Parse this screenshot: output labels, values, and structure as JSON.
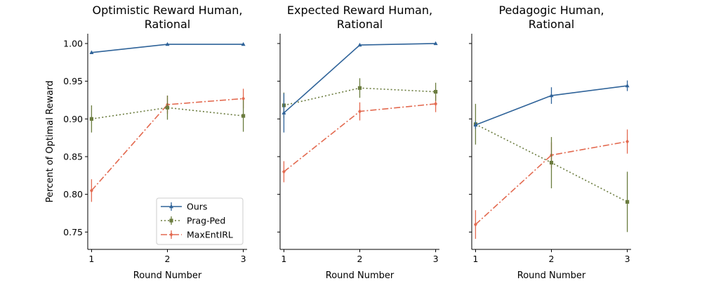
{
  "chart_data": [
    {
      "type": "line",
      "title": "Optimistic Reward Human,\nRational",
      "xlabel": "Round Number",
      "ylabel": "Percent of Optimal Reward",
      "x": [
        1,
        2,
        3
      ],
      "xlim": [
        0.95,
        3.05
      ],
      "ylim": [
        0.727,
        1.013
      ],
      "yticks": [
        "0.75",
        "0.80",
        "0.85",
        "0.90",
        "0.95",
        "1.00"
      ],
      "xticks": [
        "1",
        "2",
        "3"
      ],
      "show_yticklabels": true,
      "legend": "lower-right",
      "series": [
        {
          "name": "Ours",
          "values": [
            0.988,
            0.999,
            0.999
          ],
          "errors": [
            0.002,
            0.001,
            0.001
          ]
        },
        {
          "name": "Prag-Ped",
          "values": [
            0.9,
            0.915,
            0.904
          ],
          "errors": [
            0.018,
            0.016,
            0.021
          ]
        },
        {
          "name": "MaxEntIRL",
          "values": [
            0.805,
            0.919,
            0.927
          ],
          "errors": [
            0.015,
            0.012,
            0.013
          ]
        }
      ]
    },
    {
      "type": "line",
      "title": "Expected Reward Human,\nRational",
      "xlabel": "Round Number",
      "ylabel": "",
      "x": [
        1,
        2,
        3
      ],
      "xlim": [
        0.95,
        3.05
      ],
      "ylim": [
        0.727,
        1.013
      ],
      "xticks": [
        "1",
        "2",
        "3"
      ],
      "show_yticklabels": false,
      "legend": "",
      "series": [
        {
          "name": "Ours",
          "values": [
            0.908,
            0.998,
            1.0
          ],
          "errors": [
            0.026,
            0.001,
            0.001
          ]
        },
        {
          "name": "Prag-Ped",
          "values": [
            0.918,
            0.941,
            0.936
          ],
          "errors": [
            0.017,
            0.013,
            0.012
          ]
        },
        {
          "name": "MaxEntIRL",
          "values": [
            0.83,
            0.91,
            0.92
          ],
          "errors": [
            0.014,
            0.012,
            0.011
          ]
        }
      ]
    },
    {
      "type": "line",
      "title": "Pedagogic Human,\nRational",
      "xlabel": "Round Number",
      "ylabel": "",
      "x": [
        1,
        2,
        3
      ],
      "xlim": [
        0.95,
        3.05
      ],
      "ylim": [
        0.727,
        1.013
      ],
      "xticks": [
        "1",
        "2",
        "3"
      ],
      "show_yticklabels": false,
      "legend": "",
      "series": [
        {
          "name": "Ours",
          "values": [
            0.892,
            0.931,
            0.944
          ],
          "errors": [
            0.005,
            0.011,
            0.007
          ]
        },
        {
          "name": "Prag-Ped",
          "values": [
            0.893,
            0.842,
            0.79
          ],
          "errors": [
            0.027,
            0.034,
            0.04
          ]
        },
        {
          "name": "MaxEntIRL",
          "values": [
            0.76,
            0.852,
            0.87
          ],
          "errors": [
            0.019,
            0.017,
            0.016
          ]
        }
      ]
    }
  ],
  "series_styles": [
    {
      "name": "Ours",
      "color": "#2f6399",
      "dash": "solid",
      "marker": "triangle-up-icon"
    },
    {
      "name": "Prag-Ped",
      "color": "#6b7c3f",
      "dash": "dotted",
      "marker": "square-icon"
    },
    {
      "name": "MaxEntIRL",
      "color": "#e36a50",
      "dash": "dashdot",
      "marker": "diamond-icon"
    }
  ]
}
